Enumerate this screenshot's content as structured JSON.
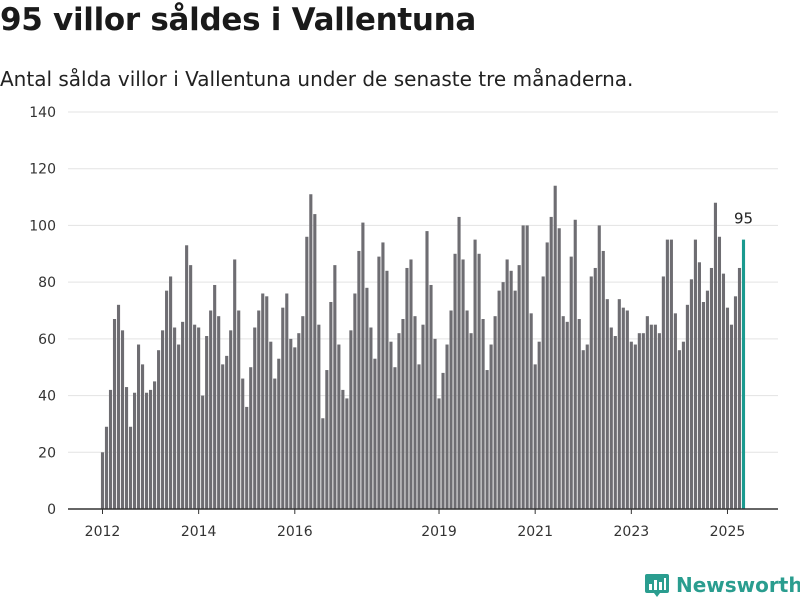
{
  "header": {
    "title": "95 villor såldes i Vallentuna",
    "subtitle": "Antal sålda villor i Vallentuna under de senaste tre månaderna."
  },
  "brand": {
    "name": "Newsworthy",
    "icon": "newsworthy-logo-icon",
    "color": "#2a9d8f"
  },
  "colors": {
    "bar": "#6e6d72",
    "highlight": "#1a9a8f",
    "grid": "#e3e3e3",
    "axis": "#333333"
  },
  "chart_data": {
    "type": "bar",
    "title": "95 villor såldes i Vallentuna",
    "subtitle": "Antal sålda villor i Vallentuna under de senaste tre månaderna.",
    "xlabel": "",
    "ylabel": "",
    "ylim": [
      0,
      140
    ],
    "yticks": [
      0,
      20,
      40,
      60,
      80,
      100,
      120,
      140
    ],
    "xticks": [
      "2012",
      "2014",
      "2016",
      "2019",
      "2021",
      "2023",
      "2025"
    ],
    "x_start": "2012-01",
    "x_end": "2025-03",
    "grid": true,
    "highlight_last": true,
    "annotation": {
      "label": "95",
      "target": "last"
    },
    "values": [
      20,
      29,
      42,
      67,
      72,
      63,
      43,
      29,
      41,
      58,
      51,
      41,
      42,
      45,
      56,
      63,
      77,
      82,
      64,
      58,
      66,
      93,
      86,
      65,
      64,
      40,
      61,
      70,
      79,
      68,
      51,
      54,
      63,
      88,
      70,
      46,
      36,
      50,
      64,
      70,
      76,
      75,
      59,
      46,
      53,
      71,
      76,
      60,
      57,
      62,
      68,
      96,
      111,
      104,
      65,
      32,
      49,
      73,
      86,
      58,
      42,
      39,
      63,
      76,
      91,
      101,
      78,
      64,
      53,
      89,
      94,
      84,
      59,
      50,
      62,
      67,
      85,
      88,
      68,
      51,
      65,
      98,
      79,
      60,
      39,
      48,
      58,
      70,
      90,
      103,
      88,
      70,
      62,
      95,
      90,
      67,
      49,
      58,
      68,
      77,
      80,
      88,
      84,
      77,
      86,
      100,
      100,
      69,
      51,
      59,
      82,
      94,
      103,
      114,
      99,
      68,
      66,
      89,
      102,
      67,
      56,
      58,
      82,
      85,
      100,
      91,
      74,
      64,
      61,
      74,
      71,
      70,
      59,
      58,
      62,
      62,
      68,
      65,
      65,
      62,
      82,
      95,
      95,
      69,
      56,
      59,
      72,
      81,
      95,
      87,
      73,
      77,
      85,
      108,
      96,
      83,
      71,
      65,
      75,
      85,
      95
    ]
  }
}
